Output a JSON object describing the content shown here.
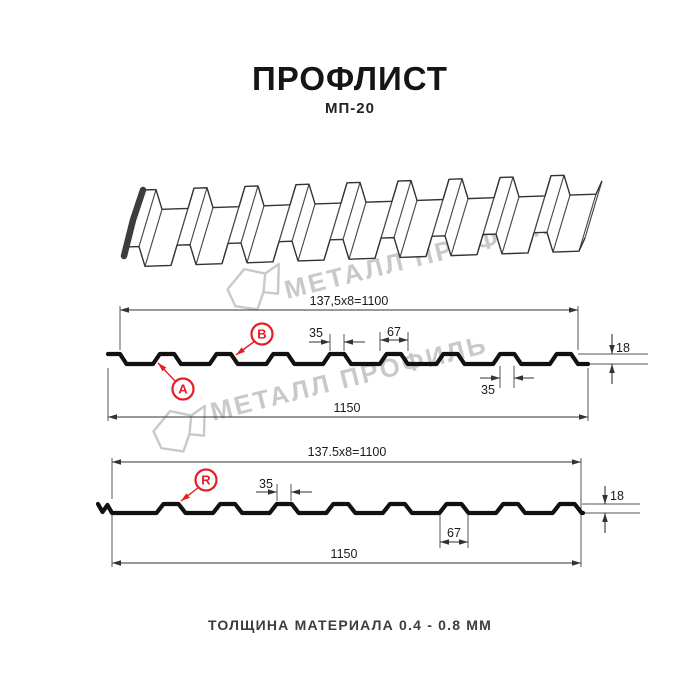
{
  "header": {
    "title": "ПРОФЛИСТ",
    "subtitle": "МП-20"
  },
  "watermarks": {
    "brand": "МЕТАЛЛ ПРОФИЛЬ"
  },
  "profile_ab": {
    "label_a": "A",
    "label_b": "B",
    "dim_coverage": "137,5x8=1100",
    "dim_rib_top": "35",
    "dim_rib_bottom": "67",
    "dim_height": "18",
    "dim_overlap": "35",
    "dim_total": "1150"
  },
  "profile_r": {
    "label_r": "R",
    "dim_coverage": "137.5x8=1100",
    "dim_rib_top": "35",
    "dim_rib_bottom": "67",
    "dim_height": "18",
    "dim_total": "1150"
  },
  "footer": {
    "material_note": "ТОЛЩИНА МАТЕРИАЛА 0.4 - 0.8 ММ"
  },
  "colors": {
    "accent": "#e31e24",
    "ink": "#1a1a1a",
    "watermark": "#c9c9c9"
  }
}
